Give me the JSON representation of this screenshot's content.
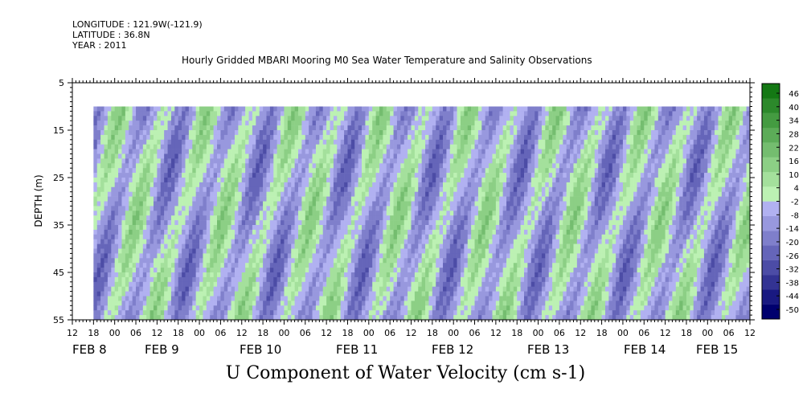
{
  "header": {
    "longitude": "LONGITUDE : 121.9W(-121.9)",
    "latitude": "LATITUDE : 36.8N",
    "year": "YEAR : 2011"
  },
  "chart_data": {
    "type": "heatmap",
    "title": "Hourly Gridded MBARI Mooring M0 Sea Water Temperature and Salinity Observations",
    "xlabel": "U Component of Water Velocity (cm s-1)",
    "ylabel": "DEPTH (m)",
    "ylim": [
      5,
      55
    ],
    "y_inverted": true,
    "y_ticks": [
      5,
      15,
      25,
      35,
      45,
      55
    ],
    "xlim_hours": [
      -12,
      180
    ],
    "x_time_ticks": [
      "12",
      "18",
      "00",
      "06",
      "12",
      "18",
      "00",
      "06",
      "12",
      "18",
      "00",
      "06",
      "12",
      "18",
      "00",
      "06",
      "12",
      "18",
      "00",
      "06",
      "12",
      "18",
      "00",
      "06",
      "12",
      "18",
      "00",
      "06",
      "12",
      "18",
      "00",
      "06",
      "12"
    ],
    "x_date_labels": [
      "FEB  8",
      "FEB  9",
      "FEB 10",
      "FEB 11",
      "FEB 12",
      "FEB 13",
      "FEB 14",
      "FEB 15"
    ],
    "data_depth_range": [
      10,
      55
    ],
    "data_time_start_hours": -6,
    "colorbar": {
      "levels": [
        -50,
        -44,
        -38,
        -32,
        -26,
        -20,
        -14,
        -8,
        -2,
        4,
        10,
        16,
        22,
        28,
        34,
        40,
        46
      ],
      "labeled_levels": [
        "46",
        "40",
        "34",
        "28",
        "22",
        "16",
        "10",
        "4",
        "-2",
        "-8",
        "-14",
        "-20",
        "-26",
        "-32",
        "-38",
        "-44",
        "-50"
      ]
    },
    "field_summary": {
      "dominant_range": [
        -20,
        16
      ],
      "positive_bands_day_offsets": [
        0.1,
        0.45,
        1.1,
        1.55,
        2.05,
        2.5,
        3.1,
        3.45,
        4.1,
        4.55,
        5.05,
        5.45,
        6.0,
        6.45,
        6.85
      ],
      "negative_bands_day_offsets": [
        0.3,
        0.75,
        1.3,
        1.85,
        2.3,
        2.8,
        3.3,
        3.8,
        4.3,
        4.8,
        5.3,
        5.75,
        6.25,
        6.65,
        7.05
      ]
    }
  }
}
